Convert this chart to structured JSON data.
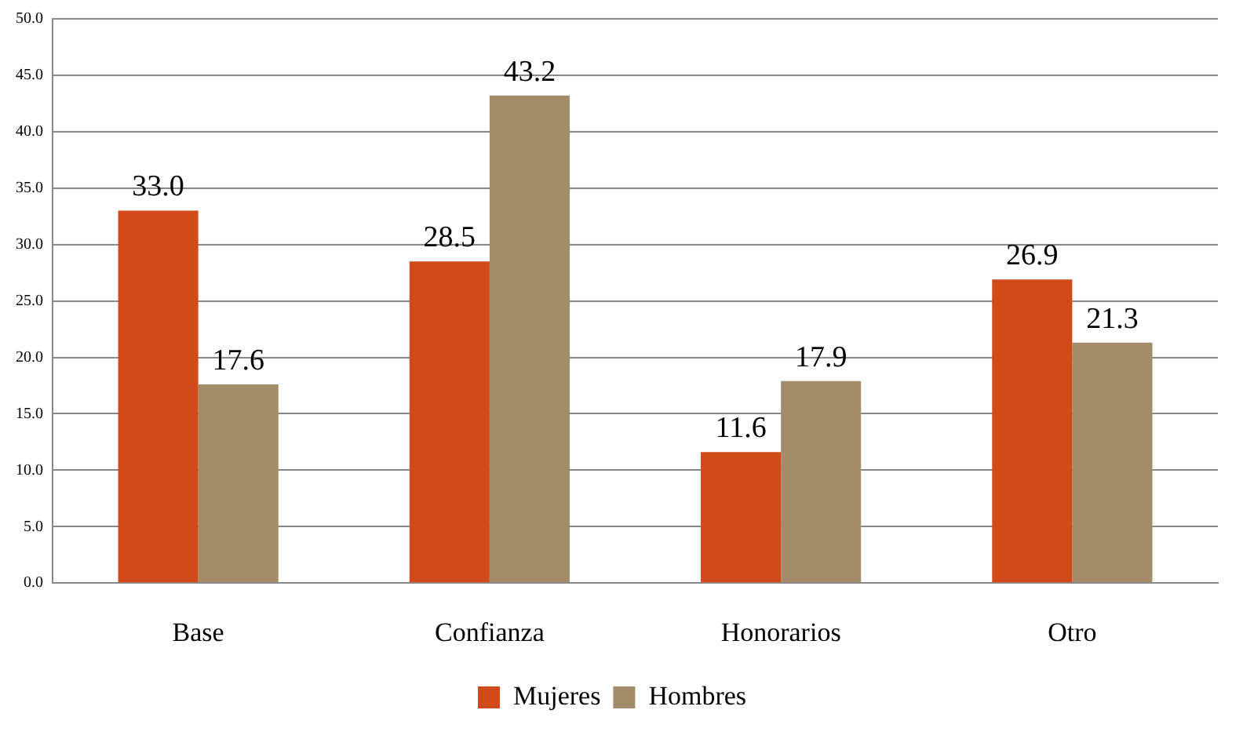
{
  "chart_data": {
    "type": "bar",
    "categories": [
      "Base",
      "Confianza",
      "Honorarios",
      "Otro"
    ],
    "series": [
      {
        "name": "Mujeres",
        "color": "#d04a1a",
        "values": [
          33.0,
          28.5,
          11.6,
          26.9
        ],
        "value_labels": [
          "33.0",
          "28.5",
          "11.6",
          "26.9"
        ]
      },
      {
        "name": "Hombres",
        "color": "#a38c6a",
        "values": [
          17.6,
          43.2,
          17.9,
          21.3
        ],
        "value_labels": [
          "17.6",
          "43.2",
          "17.9",
          "21.3"
        ]
      }
    ],
    "ylim": [
      0,
      50
    ],
    "yticks": [
      {
        "value": 0,
        "label": "0.0"
      },
      {
        "value": 5,
        "label": "5.0"
      },
      {
        "value": 10,
        "label": "10.0"
      },
      {
        "value": 15,
        "label": "15.0"
      },
      {
        "value": 20,
        "label": "20.0"
      },
      {
        "value": 25,
        "label": "25.0"
      },
      {
        "value": 30,
        "label": "30.0"
      },
      {
        "value": 35,
        "label": "35.0"
      },
      {
        "value": 40,
        "label": "40.0"
      },
      {
        "value": 45,
        "label": "45.0"
      },
      {
        "value": 50,
        "label": "50.0"
      }
    ],
    "grid": "y",
    "legend": "bottom"
  }
}
